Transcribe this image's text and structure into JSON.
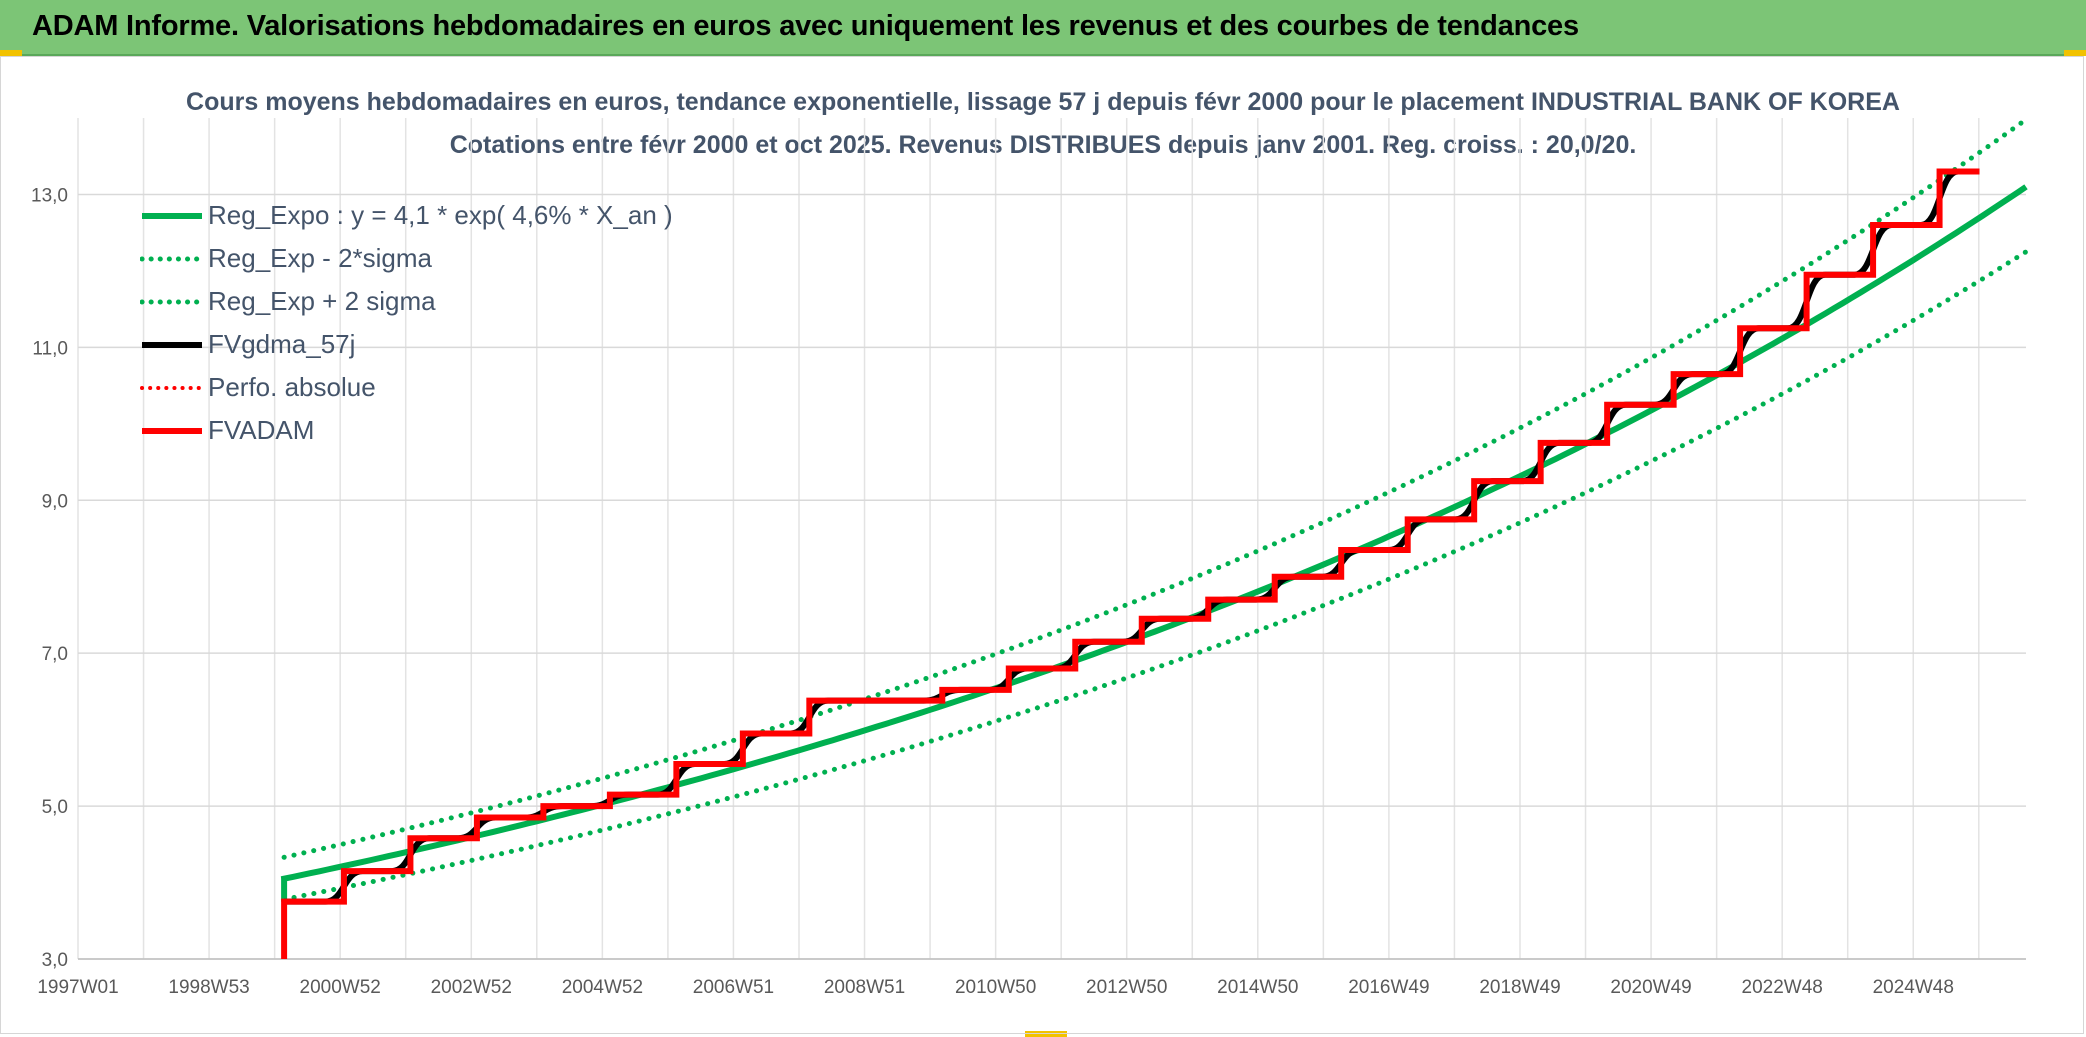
{
  "header": {
    "title": "ADAM Informe. Valorisations hebdomadaires en euros avec uniquement les revenus et des courbes de tendances"
  },
  "colors": {
    "header_bg": "#7cc576",
    "trend": "#00b050",
    "fv": "#000000",
    "adam": "#ff0000",
    "grid": "#d9d9d9",
    "text": "#44546a"
  },
  "chart_data": {
    "type": "line",
    "title": "Cours moyens hebdomadaires en euros, tendance exponentielle, lissage 57 j depuis févr 2000 pour le placement INDUSTRIAL BANK OF KOREA",
    "subtitle": "Cotations entre févr 2000 et oct 2025. Revenus DISTRIBUES depuis janv 2001. Reg. croiss. : 20,0/20.",
    "x_tick_labels": [
      "1997W01",
      "1998W53",
      "2000W52",
      "2002W52",
      "2004W52",
      "2006W51",
      "2008W51",
      "2010W50",
      "2012W50",
      "2014W50",
      "2016W49",
      "2018W49",
      "2020W49",
      "2022W48",
      "2024W48"
    ],
    "x_range": [
      1997.0,
      2026.3
    ],
    "y_ticks": [
      3.0,
      5.0,
      7.0,
      9.0,
      11.0,
      13.0
    ],
    "y_tick_labels": [
      "3,0",
      "5,0",
      "7,0",
      "9,0",
      "11,0",
      "13,0"
    ],
    "ylim": [
      3.0,
      14.0
    ],
    "grid": true,
    "legend_position": "top-left",
    "series": [
      {
        "name": "Reg_Expo : y = 4,1 * exp( 4,6% *  X_an )",
        "kind": "trend",
        "x_start": 2000.1,
        "x_end": 2026.3,
        "y_start": 4.05,
        "y_end": 13.1
      },
      {
        "name": "Reg_Exp - 2*sigma",
        "kind": "trend",
        "x_start": 2000.1,
        "x_end": 2026.3,
        "y_start": 3.78,
        "y_end": 12.25
      },
      {
        "name": "Reg_Exp + 2 sigma",
        "kind": "trend",
        "x_start": 2000.1,
        "x_end": 2026.3,
        "y_start": 4.33,
        "y_end": 13.98
      },
      {
        "name": "FVgdma_57j",
        "kind": "smooth_steps"
      },
      {
        "name": "Perfo. absolue",
        "kind": "hidden"
      },
      {
        "name": "FVADAM",
        "kind": "steps",
        "start": {
          "x": 2000.1,
          "y": 3.0
        },
        "steps": [
          {
            "x": 2000.1,
            "y": 3.75
          },
          {
            "x": 2001.0,
            "y": 4.15
          },
          {
            "x": 2002.0,
            "y": 4.58
          },
          {
            "x": 2003.0,
            "y": 4.85
          },
          {
            "x": 2004.0,
            "y": 5.0
          },
          {
            "x": 2005.0,
            "y": 5.15
          },
          {
            "x": 2006.0,
            "y": 5.55
          },
          {
            "x": 2007.0,
            "y": 5.95
          },
          {
            "x": 2008.0,
            "y": 6.38
          },
          {
            "x": 2010.0,
            "y": 6.52
          },
          {
            "x": 2011.0,
            "y": 6.8
          },
          {
            "x": 2012.0,
            "y": 7.15
          },
          {
            "x": 2013.0,
            "y": 7.45
          },
          {
            "x": 2014.0,
            "y": 7.7
          },
          {
            "x": 2015.0,
            "y": 8.0
          },
          {
            "x": 2016.0,
            "y": 8.35
          },
          {
            "x": 2017.0,
            "y": 8.75
          },
          {
            "x": 2018.0,
            "y": 9.25
          },
          {
            "x": 2019.0,
            "y": 9.75
          },
          {
            "x": 2020.0,
            "y": 10.25
          },
          {
            "x": 2021.0,
            "y": 10.65
          },
          {
            "x": 2022.0,
            "y": 11.25
          },
          {
            "x": 2023.0,
            "y": 11.95
          },
          {
            "x": 2024.0,
            "y": 12.6
          },
          {
            "x": 2025.0,
            "y": 13.3
          }
        ],
        "end_x": 2025.6
      }
    ]
  }
}
